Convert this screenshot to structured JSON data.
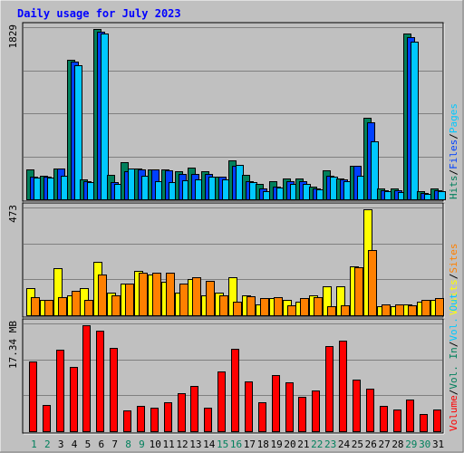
{
  "title": "Daily usage for July 2023",
  "colors": {
    "background": "#c0c0c0",
    "grid": "#808080",
    "hits": "#00805c",
    "files": "#0040ff",
    "pages": "#00c8ff",
    "visits": "#ffff00",
    "sites": "#ff8000",
    "volume": "#ff0000",
    "title": "#0000ff",
    "weekend_label": "#00805c",
    "weekday_label": "#000000"
  },
  "chart_data": [
    {
      "type": "bar",
      "panel": "top",
      "max_label": "1829",
      "ylim": [
        0,
        1829
      ],
      "categories": [
        "1",
        "2",
        "3",
        "4",
        "5",
        "6",
        "7",
        "8",
        "9",
        "10",
        "11",
        "12",
        "13",
        "14",
        "15",
        "16",
        "17",
        "18",
        "19",
        "20",
        "21",
        "22",
        "23",
        "24",
        "25",
        "26",
        "27",
        "28",
        "29",
        "30",
        "31"
      ],
      "weekend_days": [
        "1",
        "2",
        "8",
        "9",
        "15",
        "16",
        "22",
        "23",
        "29",
        "30"
      ],
      "legend": [
        "Hits",
        "/",
        "Files",
        "/",
        "Pages"
      ],
      "series": [
        {
          "name": "Hits",
          "color": "#00805c",
          "values": [
            320,
            250,
            330,
            1500,
            210,
            1829,
            260,
            400,
            330,
            320,
            320,
            300,
            340,
            300,
            240,
            420,
            260,
            170,
            190,
            220,
            220,
            140,
            310,
            220,
            360,
            880,
            120,
            120,
            1780,
            90,
            120
          ]
        },
        {
          "name": "Files",
          "color": "#0040ff",
          "values": [
            240,
            240,
            330,
            1480,
            190,
            1800,
            180,
            300,
            320,
            320,
            310,
            270,
            270,
            270,
            240,
            360,
            190,
            120,
            140,
            190,
            190,
            120,
            250,
            210,
            360,
            830,
            100,
            100,
            1740,
            70,
            100
          ]
        },
        {
          "name": "Pages",
          "color": "#00c8ff",
          "values": [
            230,
            230,
            250,
            1440,
            180,
            1780,
            170,
            330,
            250,
            190,
            180,
            200,
            210,
            240,
            210,
            370,
            180,
            90,
            130,
            170,
            170,
            110,
            240,
            190,
            250,
            620,
            90,
            80,
            1690,
            60,
            90
          ]
        }
      ]
    },
    {
      "type": "bar",
      "panel": "middle",
      "max_label": "473",
      "ylim": [
        0,
        473
      ],
      "categories": [
        "1",
        "2",
        "3",
        "4",
        "5",
        "6",
        "7",
        "8",
        "9",
        "10",
        "11",
        "12",
        "13",
        "14",
        "15",
        "16",
        "17",
        "18",
        "19",
        "20",
        "21",
        "22",
        "23",
        "24",
        "25",
        "26",
        "27",
        "28",
        "29",
        "30",
        "31"
      ],
      "legend": [
        "Visits",
        "/",
        "Sites"
      ],
      "series": [
        {
          "name": "Visits",
          "color": "#ffff00",
          "values": [
            120,
            70,
            210,
            90,
            120,
            240,
            100,
            140,
            200,
            180,
            150,
            100,
            160,
            90,
            100,
            170,
            90,
            50,
            75,
            70,
            60,
            90,
            130,
            130,
            220,
            473,
            40,
            40,
            50,
            60,
            70
          ]
        },
        {
          "name": "Sites",
          "color": "#ff8000",
          "values": [
            80,
            70,
            80,
            110,
            70,
            180,
            90,
            140,
            190,
            190,
            190,
            140,
            170,
            155,
            90,
            60,
            85,
            75,
            80,
            45,
            75,
            80,
            40,
            45,
            215,
            290,
            50,
            50,
            45,
            70,
            75
          ]
        }
      ]
    },
    {
      "type": "bar",
      "panel": "bottom",
      "max_label": "17.34 MB",
      "ylim": [
        0,
        17.34
      ],
      "unit": "MB",
      "categories": [
        "1",
        "2",
        "3",
        "4",
        "5",
        "6",
        "7",
        "8",
        "9",
        "10",
        "11",
        "12",
        "13",
        "14",
        "15",
        "16",
        "17",
        "18",
        "19",
        "20",
        "21",
        "22",
        "23",
        "24",
        "25",
        "26",
        "27",
        "28",
        "29",
        "30",
        "31"
      ],
      "legend": [
        "Volume",
        "/",
        "Vol. In",
        "/",
        "Vol. Out"
      ],
      "series": [
        {
          "name": "Volume",
          "color": "#ff0000",
          "values": [
            11.4,
            4.3,
            13.4,
            10.5,
            17.34,
            16.4,
            13.6,
            3.4,
            4.1,
            3.8,
            4.8,
            6.2,
            7.4,
            3.9,
            9.8,
            13.5,
            8.2,
            4.8,
            9.2,
            8.0,
            5.6,
            6.6,
            14.0,
            14.8,
            8.4,
            7.0,
            4.1,
            3.6,
            5.2,
            2.8,
            3.6
          ]
        }
      ]
    }
  ]
}
